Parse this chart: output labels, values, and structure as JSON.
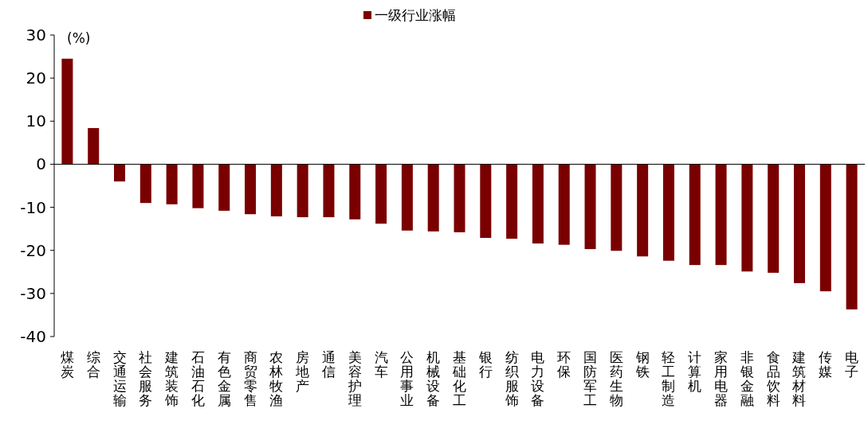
{
  "chart_data": {
    "type": "bar",
    "categories": [
      "煤炭",
      "综合",
      "交通运输",
      "社会服务",
      "建筑装饰",
      "石油石化",
      "有色金属",
      "商贸零售",
      "农林牧渔",
      "房地产",
      "通信",
      "美容护理",
      "汽车",
      "公用事业",
      "机械设备",
      "基础化工",
      "银行",
      "纺织服饰",
      "电力设备",
      "环保",
      "国防军工",
      "医药生物",
      "钢铁",
      "轻工制造",
      "计算机",
      "家用电器",
      "非银金融",
      "食品饮料",
      "建筑材料",
      "传媒",
      "电子"
    ],
    "series": [
      {
        "name": "一级行业涨幅",
        "color": "#7a0000",
        "values": [
          24.5,
          8.4,
          -4.0,
          -9.0,
          -9.3,
          -10.2,
          -10.8,
          -11.6,
          -12.1,
          -12.3,
          -12.3,
          -12.8,
          -13.8,
          -15.4,
          -15.6,
          -15.8,
          -17.1,
          -17.3,
          -18.4,
          -18.7,
          -19.7,
          -20.1,
          -21.4,
          -22.4,
          -23.4,
          -23.4,
          -24.9,
          -25.2,
          -27.6,
          -29.5,
          -33.7
        ]
      }
    ],
    "ylim": [
      -40,
      30
    ],
    "yticks": [
      -40,
      -30,
      -20,
      -10,
      0,
      10,
      20,
      30
    ],
    "annotations": [
      "(%)"
    ],
    "legend": "top"
  }
}
